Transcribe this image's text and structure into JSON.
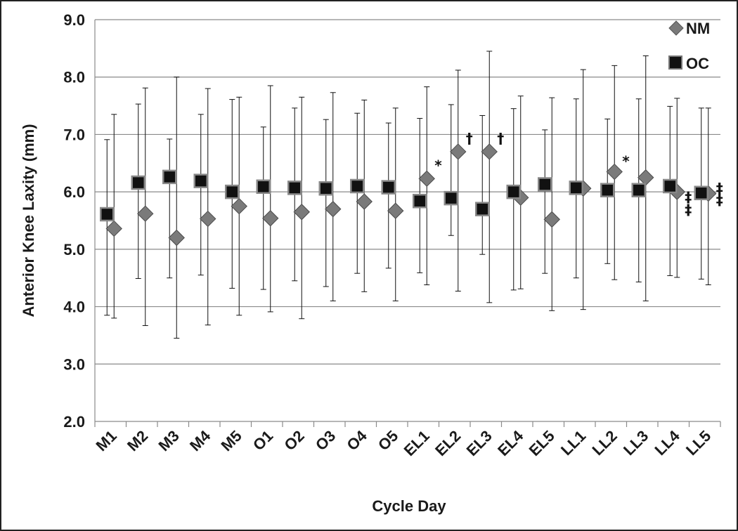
{
  "chart_data": {
    "type": "scatter",
    "title": "",
    "xlabel": "Cycle Day",
    "ylabel": "Anterior Knee Laxity (mm)",
    "ylim": [
      2.0,
      9.0
    ],
    "y_ticks": [
      "2.0",
      "3.0",
      "4.0",
      "5.0",
      "6.0",
      "7.0",
      "8.0",
      "9.0"
    ],
    "grid": true,
    "legend_position": "top-right",
    "categories": [
      "M1",
      "M2",
      "M3",
      "M4",
      "M5",
      "O1",
      "O2",
      "O3",
      "O4",
      "O5",
      "EL1",
      "EL2",
      "EL3",
      "EL4",
      "EL5",
      "LL1",
      "LL2",
      "LL3",
      "LL4",
      "LL5"
    ],
    "series": [
      {
        "name": "NM",
        "marker": "diamond",
        "color": "#7a7a7a",
        "values": [
          5.36,
          5.62,
          5.2,
          5.53,
          5.75,
          5.54,
          5.65,
          5.7,
          5.83,
          5.67,
          6.23,
          6.7,
          6.7,
          5.9,
          5.52,
          6.06,
          6.35,
          6.25,
          6.0,
          5.97
        ],
        "err_high": [
          7.35,
          7.81,
          8.0,
          7.8,
          7.65,
          7.85,
          7.65,
          7.73,
          7.6,
          7.46,
          7.83,
          8.12,
          8.45,
          7.67,
          7.64,
          8.13,
          8.2,
          8.37,
          7.63,
          7.46
        ],
        "err_low": [
          3.8,
          3.67,
          3.45,
          3.68,
          3.85,
          3.91,
          3.79,
          4.1,
          4.26,
          4.1,
          4.38,
          4.27,
          4.07,
          4.31,
          3.93,
          3.95,
          4.47,
          4.1,
          4.51,
          4.38
        ]
      },
      {
        "name": "OC",
        "marker": "square",
        "color": "#111111",
        "values": [
          5.61,
          6.16,
          6.26,
          6.19,
          6.0,
          6.09,
          6.07,
          6.06,
          6.1,
          6.08,
          5.84,
          5.89,
          5.7,
          6.0,
          6.13,
          6.07,
          6.03,
          6.03,
          6.1,
          5.98
        ],
        "err_high": [
          6.91,
          7.53,
          6.92,
          7.35,
          7.61,
          7.13,
          7.46,
          7.26,
          7.37,
          7.2,
          7.28,
          7.52,
          7.33,
          7.45,
          7.08,
          7.62,
          7.27,
          7.62,
          7.49,
          7.46
        ],
        "err_low": [
          3.85,
          4.49,
          4.5,
          4.55,
          4.32,
          4.3,
          4.45,
          4.35,
          4.58,
          4.67,
          4.59,
          5.24,
          4.91,
          4.29,
          4.58,
          4.5,
          4.75,
          4.43,
          4.54,
          4.48
        ]
      }
    ],
    "annotations": [
      {
        "category": "EL1",
        "y": 6.45,
        "text": "*"
      },
      {
        "category": "EL2",
        "y": 6.92,
        "text": "†"
      },
      {
        "category": "EL3",
        "y": 6.92,
        "text": "†"
      },
      {
        "category": "LL2",
        "y": 6.52,
        "text": "*"
      },
      {
        "category": "LL4",
        "y": 5.9,
        "text": "‡"
      },
      {
        "category": "LL4",
        "y": 5.68,
        "text": "‡"
      },
      {
        "category": "LL5",
        "y": 6.05,
        "text": "‡"
      },
      {
        "category": "LL5",
        "y": 5.85,
        "text": "‡"
      }
    ]
  }
}
